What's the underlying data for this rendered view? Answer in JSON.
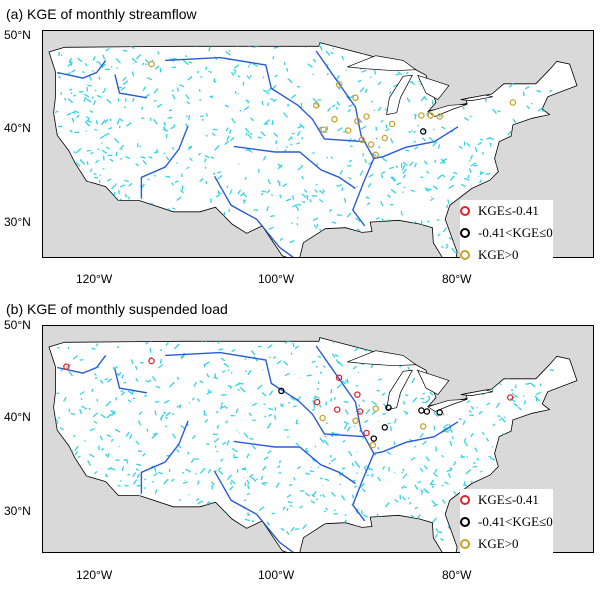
{
  "panels": [
    {
      "title": "(a) KGE of monthly streamflow",
      "lat_ticks": [
        "50°N",
        "40°N",
        "30°N"
      ],
      "lon_ticks": [
        "120°W",
        "100°W",
        "80°W"
      ],
      "legend": [
        {
          "label": "KGE≤-0.41",
          "color": "#e0242b"
        },
        {
          "label": "-0.41<KGE≤0",
          "color": "#000000"
        },
        {
          "label": "KGE>0",
          "color": "#c9a227"
        }
      ],
      "stations": [
        {
          "lon": -113.5,
          "lat": 47.1,
          "class": 2
        },
        {
          "lon": -93.0,
          "lat": 44.9,
          "class": 2
        },
        {
          "lon": -95.5,
          "lat": 42.7,
          "class": 2
        },
        {
          "lon": -91.2,
          "lat": 43.5,
          "class": 2
        },
        {
          "lon": -90.0,
          "lat": 41.5,
          "class": 2
        },
        {
          "lon": -91.0,
          "lat": 41.0,
          "class": 2
        },
        {
          "lon": -92.0,
          "lat": 40.0,
          "class": 2
        },
        {
          "lon": -90.5,
          "lat": 39.0,
          "class": 2
        },
        {
          "lon": -89.5,
          "lat": 38.5,
          "class": 2
        },
        {
          "lon": -89.0,
          "lat": 37.4,
          "class": 2
        },
        {
          "lon": -88.0,
          "lat": 39.2,
          "class": 2
        },
        {
          "lon": -87.2,
          "lat": 40.7,
          "class": 2
        },
        {
          "lon": -93.5,
          "lat": 41.2,
          "class": 2
        },
        {
          "lon": -94.7,
          "lat": 40.1,
          "class": 2
        },
        {
          "lon": -84.0,
          "lat": 41.6,
          "class": 2
        },
        {
          "lon": -83.0,
          "lat": 41.6,
          "class": 2
        },
        {
          "lon": -82.0,
          "lat": 41.5,
          "class": 2
        },
        {
          "lon": -83.8,
          "lat": 39.9,
          "class": 1
        },
        {
          "lon": -74.0,
          "lat": 43.0,
          "class": 2
        }
      ]
    },
    {
      "title": "(b) KGE of monthly suspended load",
      "lat_ticks": [
        "50°N",
        "40°N",
        "30°N"
      ],
      "lon_ticks": [
        "120°W",
        "100°W",
        "80°W"
      ],
      "legend": [
        {
          "label": "KGE≤-0.41",
          "color": "#e0242b"
        },
        {
          "label": "-0.41<KGE≤0",
          "color": "#000000"
        },
        {
          "label": "KGE>0",
          "color": "#c9a227"
        }
      ],
      "stations": [
        {
          "lon": -122.8,
          "lat": 46.3,
          "class": 0
        },
        {
          "lon": -113.5,
          "lat": 46.9,
          "class": 0
        },
        {
          "lon": -99.3,
          "lat": 43.7,
          "class": 1
        },
        {
          "lon": -95.4,
          "lat": 42.5,
          "class": 0
        },
        {
          "lon": -93.0,
          "lat": 45.1,
          "class": 0
        },
        {
          "lon": -91.0,
          "lat": 43.3,
          "class": 0
        },
        {
          "lon": -94.8,
          "lat": 40.8,
          "class": 2
        },
        {
          "lon": -93.2,
          "lat": 41.7,
          "class": 0
        },
        {
          "lon": -90.7,
          "lat": 41.5,
          "class": 0
        },
        {
          "lon": -89.0,
          "lat": 41.8,
          "class": 2
        },
        {
          "lon": -87.6,
          "lat": 41.9,
          "class": 1
        },
        {
          "lon": -91.2,
          "lat": 40.5,
          "class": 2
        },
        {
          "lon": -90.0,
          "lat": 39.2,
          "class": 0
        },
        {
          "lon": -89.2,
          "lat": 38.6,
          "class": 1
        },
        {
          "lon": -89.3,
          "lat": 37.9,
          "class": 2
        },
        {
          "lon": -88.0,
          "lat": 39.8,
          "class": 1
        },
        {
          "lon": -84.0,
          "lat": 41.6,
          "class": 1
        },
        {
          "lon": -83.4,
          "lat": 41.5,
          "class": 1
        },
        {
          "lon": -82.0,
          "lat": 41.4,
          "class": 1
        },
        {
          "lon": -83.8,
          "lat": 39.9,
          "class": 2
        },
        {
          "lon": -74.3,
          "lat": 43.0,
          "class": 0
        }
      ]
    }
  ]
}
